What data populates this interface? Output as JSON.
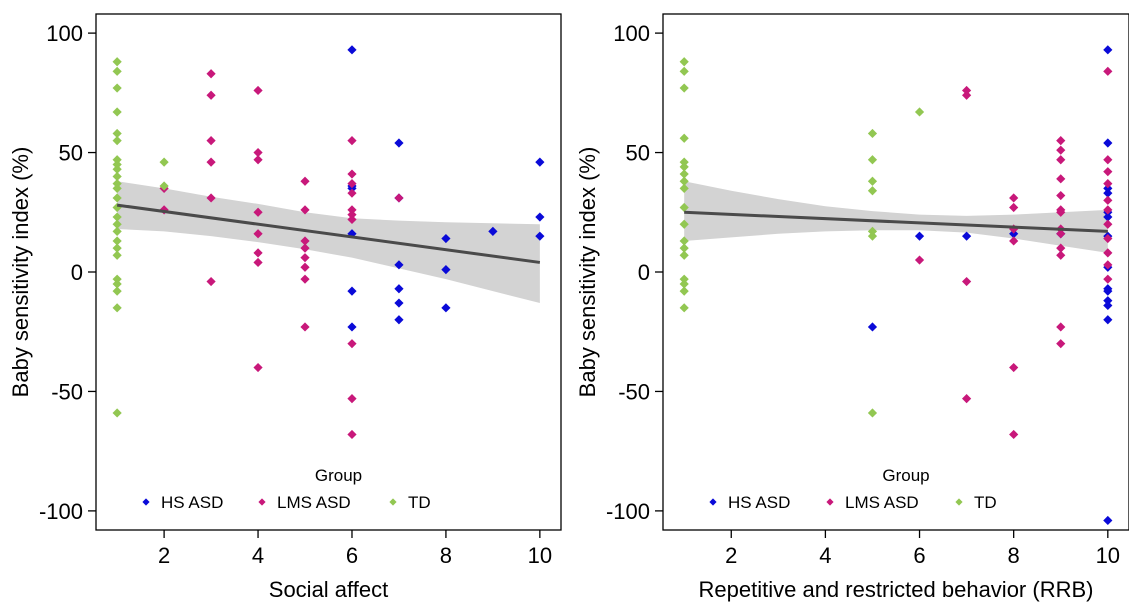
{
  "legend": {
    "title": "Group",
    "entries": [
      {
        "label": "HS ASD",
        "color": "#0a0ad8"
      },
      {
        "label": "LMS ASD",
        "color": "#c8187a"
      },
      {
        "label": "TD",
        "color": "#92c752"
      }
    ]
  },
  "chart_data": [
    {
      "type": "scatter",
      "xlabel": "Social affect",
      "ylabel": "Baby sensitivity index (%)",
      "xlim": [
        0.55,
        10.45
      ],
      "ylim": [
        -108,
        108
      ],
      "xticks": [
        2,
        4,
        6,
        8,
        10
      ],
      "yticks": [
        -100,
        -50,
        0,
        50,
        100
      ],
      "grid": false,
      "legend_position": "bottom",
      "fit_line": {
        "x": [
          1,
          10
        ],
        "y": [
          28,
          4
        ]
      },
      "confidence_band": {
        "x": [
          1,
          2,
          3,
          4,
          5,
          6,
          7,
          8,
          9,
          10
        ],
        "lower": [
          18,
          17,
          15,
          12.5,
          9.5,
          6,
          1.5,
          -3,
          -8,
          -13
        ],
        "upper": [
          38,
          35,
          31.5,
          28.5,
          25,
          22.5,
          21.5,
          20.8,
          20.4,
          20
        ]
      },
      "series": [
        {
          "name": "HS ASD",
          "color": "#0a0ad8",
          "points": [
            [
              6,
              93
            ],
            [
              6,
              36
            ],
            [
              6,
              35
            ],
            [
              6,
              16
            ],
            [
              6,
              -8
            ],
            [
              6,
              -23
            ],
            [
              7,
              54
            ],
            [
              7,
              31
            ],
            [
              7,
              3
            ],
            [
              7,
              -7
            ],
            [
              7,
              -13
            ],
            [
              7,
              -20
            ],
            [
              8,
              14
            ],
            [
              8,
              1
            ],
            [
              8,
              -15
            ],
            [
              9,
              17
            ],
            [
              10,
              46
            ],
            [
              10,
              23
            ],
            [
              10,
              15
            ]
          ]
        },
        {
          "name": "LMS ASD",
          "color": "#c8187a",
          "points": [
            [
              2,
              35
            ],
            [
              2,
              26
            ],
            [
              3,
              83
            ],
            [
              3,
              74
            ],
            [
              3,
              55
            ],
            [
              3,
              46
            ],
            [
              3,
              31
            ],
            [
              3,
              -4
            ],
            [
              4,
              76
            ],
            [
              4,
              50
            ],
            [
              4,
              47
            ],
            [
              4,
              25
            ],
            [
              4,
              16
            ],
            [
              4,
              8
            ],
            [
              4,
              4
            ],
            [
              4,
              -40
            ],
            [
              5,
              38
            ],
            [
              5,
              26
            ],
            [
              5,
              13
            ],
            [
              5,
              10
            ],
            [
              5,
              6
            ],
            [
              5,
              2
            ],
            [
              5,
              -3
            ],
            [
              5,
              -23
            ],
            [
              6,
              55
            ],
            [
              6,
              41
            ],
            [
              6,
              37
            ],
            [
              6,
              33
            ],
            [
              6,
              26
            ],
            [
              6,
              24
            ],
            [
              6,
              22
            ],
            [
              6,
              -30
            ],
            [
              6,
              -53
            ],
            [
              6,
              -68
            ],
            [
              7,
              31
            ]
          ]
        },
        {
          "name": "TD",
          "color": "#92c752",
          "points": [
            [
              1,
              88
            ],
            [
              1,
              84
            ],
            [
              1,
              77
            ],
            [
              1,
              67
            ],
            [
              1,
              58
            ],
            [
              1,
              55
            ],
            [
              1,
              47
            ],
            [
              1,
              45
            ],
            [
              1,
              43
            ],
            [
              1,
              40
            ],
            [
              1,
              37
            ],
            [
              1,
              35
            ],
            [
              1,
              31
            ],
            [
              1,
              27
            ],
            [
              1,
              23
            ],
            [
              1,
              20
            ],
            [
              1,
              17
            ],
            [
              1,
              13
            ],
            [
              1,
              10
            ],
            [
              1,
              7
            ],
            [
              1,
              -3
            ],
            [
              1,
              -5
            ],
            [
              1,
              -8
            ],
            [
              1,
              -15
            ],
            [
              1,
              -59
            ],
            [
              2,
              46
            ],
            [
              2,
              36
            ]
          ]
        }
      ]
    },
    {
      "type": "scatter",
      "xlabel": "Repetitive and restricted behavior (RRB)",
      "ylabel": "Baby sensitivity index (%)",
      "xlim": [
        0.55,
        10.45
      ],
      "ylim": [
        -108,
        108
      ],
      "xticks": [
        2,
        4,
        6,
        8,
        10
      ],
      "yticks": [
        -100,
        -50,
        0,
        50,
        100
      ],
      "grid": false,
      "legend_position": "bottom",
      "fit_line": {
        "x": [
          1,
          10
        ],
        "y": [
          25,
          17
        ]
      },
      "confidence_band": {
        "x": [
          1,
          2,
          3,
          4,
          5,
          6,
          7,
          8,
          9,
          10
        ],
        "lower": [
          13,
          14.5,
          16,
          17,
          17.5,
          17.5,
          16.5,
          14,
          11,
          8
        ],
        "upper": [
          38,
          34,
          30.5,
          27.5,
          25.5,
          24,
          23.5,
          24,
          25,
          26
        ]
      },
      "series": [
        {
          "name": "HS ASD",
          "color": "#0a0ad8",
          "points": [
            [
              5,
              -23
            ],
            [
              6,
              15
            ],
            [
              7,
              15
            ],
            [
              8,
              16
            ],
            [
              9,
              16
            ],
            [
              10,
              93
            ],
            [
              10,
              54
            ],
            [
              10,
              35
            ],
            [
              10,
              33
            ],
            [
              10,
              25
            ],
            [
              10,
              23
            ],
            [
              10,
              15
            ],
            [
              10,
              2
            ],
            [
              10,
              -7
            ],
            [
              10,
              -8
            ],
            [
              10,
              -12
            ],
            [
              10,
              -14
            ],
            [
              10,
              -20
            ],
            [
              10,
              -104
            ]
          ]
        },
        {
          "name": "LMS ASD",
          "color": "#c8187a",
          "points": [
            [
              6,
              5
            ],
            [
              7,
              76
            ],
            [
              7,
              74
            ],
            [
              7,
              -4
            ],
            [
              7,
              -53
            ],
            [
              8,
              31
            ],
            [
              8,
              27
            ],
            [
              8,
              18
            ],
            [
              8,
              13
            ],
            [
              8,
              -40
            ],
            [
              8,
              -68
            ],
            [
              9,
              55
            ],
            [
              9,
              51
            ],
            [
              9,
              47
            ],
            [
              9,
              39
            ],
            [
              9,
              32
            ],
            [
              9,
              26
            ],
            [
              9,
              25
            ],
            [
              9,
              18
            ],
            [
              9,
              16
            ],
            [
              9,
              10
            ],
            [
              9,
              7
            ],
            [
              9,
              -23
            ],
            [
              9,
              -30
            ],
            [
              10,
              84
            ],
            [
              10,
              47
            ],
            [
              10,
              42
            ],
            [
              10,
              37
            ],
            [
              10,
              30
            ],
            [
              10,
              26
            ],
            [
              10,
              20
            ],
            [
              10,
              14
            ],
            [
              10,
              8
            ],
            [
              10,
              3
            ],
            [
              10,
              -3
            ]
          ]
        },
        {
          "name": "TD",
          "color": "#92c752",
          "points": [
            [
              1,
              88
            ],
            [
              1,
              84
            ],
            [
              1,
              77
            ],
            [
              1,
              56
            ],
            [
              1,
              46
            ],
            [
              1,
              44
            ],
            [
              1,
              41
            ],
            [
              1,
              38
            ],
            [
              1,
              35
            ],
            [
              1,
              27
            ],
            [
              1,
              20
            ],
            [
              1,
              13
            ],
            [
              1,
              10
            ],
            [
              1,
              7
            ],
            [
              1,
              -3
            ],
            [
              1,
              -5
            ],
            [
              1,
              -8
            ],
            [
              1,
              -15
            ],
            [
              5,
              58
            ],
            [
              5,
              47
            ],
            [
              5,
              38
            ],
            [
              5,
              34
            ],
            [
              5,
              17
            ],
            [
              5,
              15
            ],
            [
              5,
              -59
            ],
            [
              6,
              67
            ]
          ]
        }
      ]
    }
  ]
}
